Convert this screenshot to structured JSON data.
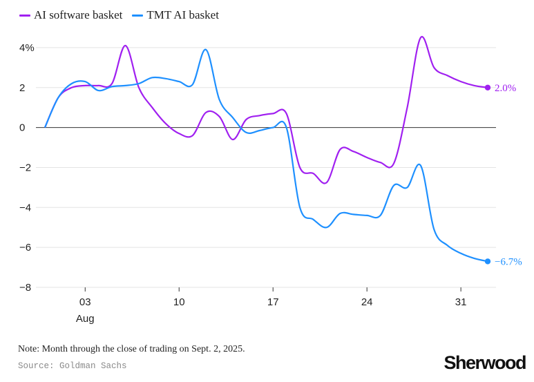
{
  "chart_data": {
    "type": "line",
    "title": "",
    "xlabel": "",
    "ylabel": "",
    "ylim": [
      -8,
      5
    ],
    "xlim": [
      "2025-07-31",
      "2025-09-03"
    ],
    "grid": true,
    "legend_placement": "top-left",
    "y_ticks": [
      {
        "value": 4,
        "label": "4%"
      },
      {
        "value": 2,
        "label": "2"
      },
      {
        "value": 0,
        "label": "0"
      },
      {
        "value": -2,
        "label": "−2"
      },
      {
        "value": -4,
        "label": "−4"
      },
      {
        "value": -6,
        "label": "−6"
      },
      {
        "value": -8,
        "label": "−8"
      }
    ],
    "x_ticks": [
      {
        "date": "2025-08-03",
        "label": "03",
        "sublabel": "Aug"
      },
      {
        "date": "2025-08-10",
        "label": "10"
      },
      {
        "date": "2025-08-17",
        "label": "17"
      },
      {
        "date": "2025-08-24",
        "label": "24"
      },
      {
        "date": "2025-08-31",
        "label": "31"
      }
    ],
    "series": [
      {
        "name": "AI software basket",
        "color": "#a020f0",
        "end_label": "2.0%",
        "points": [
          [
            "2025-07-31",
            0.0
          ],
          [
            "2025-08-01",
            1.5
          ],
          [
            "2025-08-02",
            2.0
          ],
          [
            "2025-08-03",
            2.1
          ],
          [
            "2025-08-04",
            2.1
          ],
          [
            "2025-08-05",
            2.2
          ],
          [
            "2025-08-06",
            4.1
          ],
          [
            "2025-08-07",
            2.0
          ],
          [
            "2025-08-08",
            1.0
          ],
          [
            "2025-08-09",
            0.2
          ],
          [
            "2025-08-10",
            -0.3
          ],
          [
            "2025-08-11",
            -0.4
          ],
          [
            "2025-08-12",
            0.75
          ],
          [
            "2025-08-13",
            0.55
          ],
          [
            "2025-08-14",
            -0.6
          ],
          [
            "2025-08-15",
            0.4
          ],
          [
            "2025-08-16",
            0.6
          ],
          [
            "2025-08-17",
            0.7
          ],
          [
            "2025-08-18",
            0.7
          ],
          [
            "2025-08-19",
            -2.0
          ],
          [
            "2025-08-20",
            -2.3
          ],
          [
            "2025-08-21",
            -2.75
          ],
          [
            "2025-08-22",
            -1.1
          ],
          [
            "2025-08-23",
            -1.2
          ],
          [
            "2025-08-24",
            -1.5
          ],
          [
            "2025-08-25",
            -1.75
          ],
          [
            "2025-08-26",
            -1.8
          ],
          [
            "2025-08-27",
            1.0
          ],
          [
            "2025-08-28",
            4.5
          ],
          [
            "2025-08-29",
            3.0
          ],
          [
            "2025-08-30",
            2.6
          ],
          [
            "2025-08-31",
            2.3
          ],
          [
            "2025-09-01",
            2.1
          ],
          [
            "2025-09-02",
            2.0
          ]
        ]
      },
      {
        "name": "TMT AI basket",
        "color": "#1e90ff",
        "end_label": "−6.7%",
        "points": [
          [
            "2025-07-31",
            0.0
          ],
          [
            "2025-08-01",
            1.5
          ],
          [
            "2025-08-02",
            2.2
          ],
          [
            "2025-08-03",
            2.3
          ],
          [
            "2025-08-04",
            1.85
          ],
          [
            "2025-08-05",
            2.05
          ],
          [
            "2025-08-06",
            2.1
          ],
          [
            "2025-08-07",
            2.2
          ],
          [
            "2025-08-08",
            2.5
          ],
          [
            "2025-08-09",
            2.45
          ],
          [
            "2025-08-10",
            2.3
          ],
          [
            "2025-08-11",
            2.15
          ],
          [
            "2025-08-12",
            3.9
          ],
          [
            "2025-08-13",
            1.4
          ],
          [
            "2025-08-14",
            0.5
          ],
          [
            "2025-08-15",
            -0.25
          ],
          [
            "2025-08-16",
            -0.15
          ],
          [
            "2025-08-17",
            0.0
          ],
          [
            "2025-08-18",
            0.0
          ],
          [
            "2025-08-19",
            -4.0
          ],
          [
            "2025-08-20",
            -4.6
          ],
          [
            "2025-08-21",
            -5.0
          ],
          [
            "2025-08-22",
            -4.3
          ],
          [
            "2025-08-23",
            -4.35
          ],
          [
            "2025-08-24",
            -4.4
          ],
          [
            "2025-08-25",
            -4.4
          ],
          [
            "2025-08-26",
            -2.9
          ],
          [
            "2025-08-27",
            -3.0
          ],
          [
            "2025-08-28",
            -1.9
          ],
          [
            "2025-08-29",
            -5.1
          ],
          [
            "2025-08-30",
            -5.9
          ],
          [
            "2025-08-31",
            -6.3
          ],
          [
            "2025-09-01",
            -6.55
          ],
          [
            "2025-09-02",
            -6.7
          ]
        ]
      }
    ]
  },
  "note": "Note: Month through the close of trading on Sept. 2, 2025.",
  "source": "Source: Goldman Sachs",
  "brand": "Sherwood"
}
